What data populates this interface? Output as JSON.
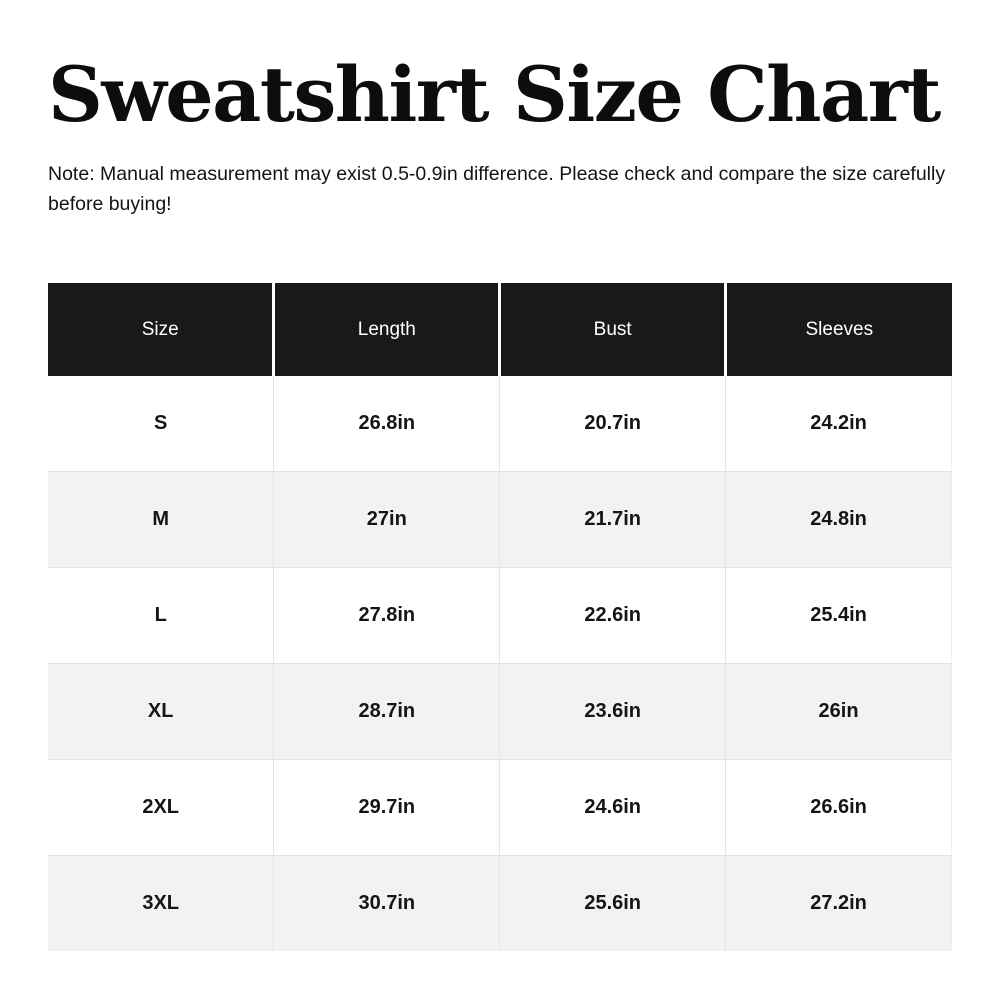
{
  "title": "Sweatshirt Size Chart",
  "note": "Note: Manual measurement may exist 0.5-0.9in difference. Please check and compare the size carefully before buying!",
  "colors": {
    "header_bg": "#191919",
    "header_text": "#ffffff",
    "row_alt_bg": "#f2f2f2",
    "grid_line": "#e4e4e4",
    "title_text": "#0d0d0d",
    "body_text": "#151515"
  },
  "chart_data": {
    "type": "table",
    "title": "Sweatshirt Size Chart",
    "unit": "in",
    "columns": [
      "Size",
      "Length",
      "Bust",
      "Sleeves"
    ],
    "rows": [
      [
        "S",
        "26.8in",
        "20.7in",
        "24.2in"
      ],
      [
        "M",
        "27in",
        "21.7in",
        "24.8in"
      ],
      [
        "L",
        "27.8in",
        "22.6in",
        "25.4in"
      ],
      [
        "XL",
        "28.7in",
        "23.6in",
        "26in"
      ],
      [
        "2XL",
        "29.7in",
        "24.6in",
        "26.6in"
      ],
      [
        "3XL",
        "30.7in",
        "25.6in",
        "27.2in"
      ]
    ]
  }
}
